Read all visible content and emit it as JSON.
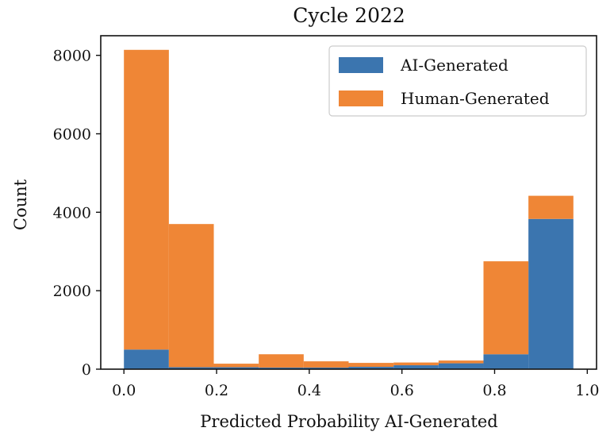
{
  "chart_data": {
    "type": "bar",
    "title": "Cycle 2022",
    "xlabel": "Predicted Probability AI-Generated",
    "ylabel": "Count",
    "xlim": [
      -0.05,
      1.02
    ],
    "ylim": [
      0,
      8500
    ],
    "xticks": [
      0.0,
      0.2,
      0.4,
      0.6,
      0.8,
      1.0
    ],
    "xtick_labels": [
      "0.0",
      "0.2",
      "0.4",
      "0.6",
      "0.8",
      "1.0"
    ],
    "yticks": [
      0,
      2000,
      4000,
      6000,
      8000
    ],
    "ytick_labels": [
      "0",
      "2000",
      "4000",
      "6000",
      "8000"
    ],
    "stacked": true,
    "bin_edges": [
      0.0,
      0.097,
      0.194,
      0.291,
      0.388,
      0.485,
      0.582,
      0.679,
      0.776,
      0.873,
      0.97
    ],
    "series": [
      {
        "name": "AI-Generated",
        "color": "#3b75af",
        "values": [
          500,
          50,
          50,
          40,
          40,
          60,
          100,
          150,
          380,
          3830
        ]
      },
      {
        "name": "Human-Generated",
        "color": "#ef8636",
        "values": [
          7640,
          3650,
          90,
          340,
          160,
          100,
          70,
          70,
          2370,
          590
        ]
      }
    ],
    "legend": {
      "position": "top-right",
      "entries": [
        "AI-Generated",
        "Human-Generated"
      ]
    },
    "grid": false
  }
}
